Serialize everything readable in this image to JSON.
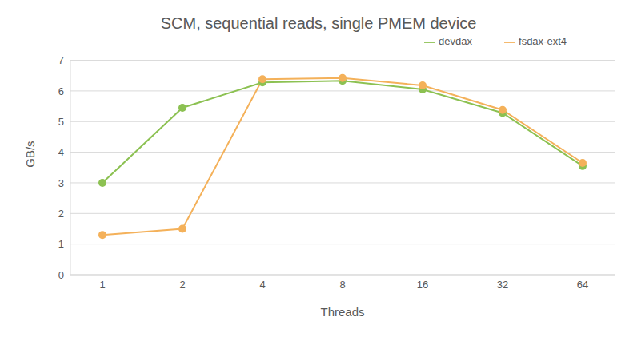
{
  "chart_data": {
    "type": "line",
    "title": "SCM, sequential reads, single PMEM device",
    "x_label": "Threads",
    "y_label": "GB/s",
    "categories": [
      "1",
      "2",
      "4",
      "8",
      "16",
      "32",
      "64"
    ],
    "series": [
      {
        "name": "devdax",
        "color": "#8cc152",
        "marker": "circle",
        "values": [
          3.0,
          5.45,
          6.28,
          6.33,
          6.05,
          5.28,
          3.55
        ]
      },
      {
        "name": "fsdax-ext4",
        "color": "#f4b15a",
        "marker": "circle",
        "values": [
          1.3,
          1.5,
          6.38,
          6.42,
          6.18,
          5.38,
          3.65
        ]
      }
    ],
    "ylim": [
      0,
      7
    ],
    "yticks": [
      0,
      1,
      2,
      3,
      4,
      5,
      6,
      7
    ],
    "grid": true,
    "legend": "top-right"
  }
}
